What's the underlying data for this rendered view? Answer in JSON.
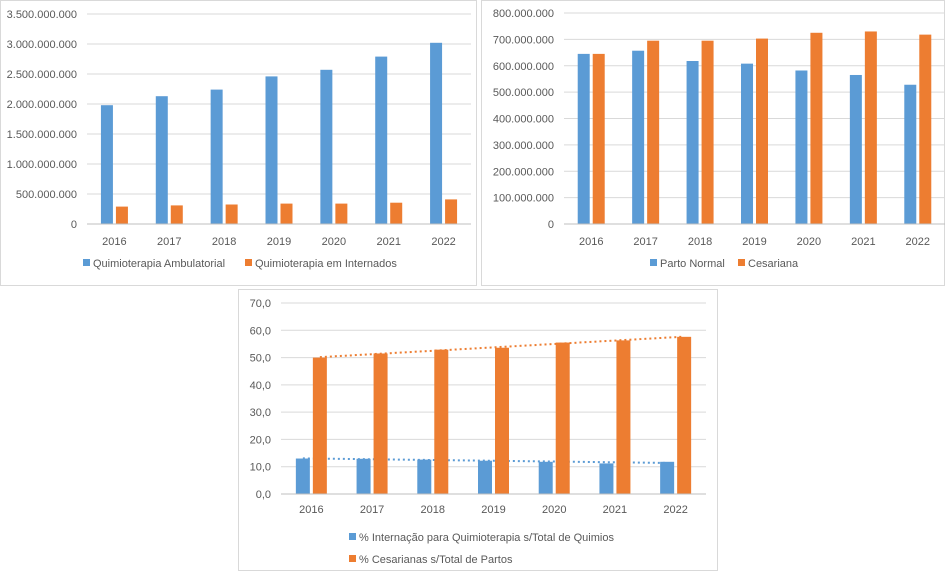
{
  "colors": {
    "blue": "#5b9bd5",
    "orange": "#ed7d31",
    "grid": "#d9d9d9",
    "text": "#595959"
  },
  "chart_data": [
    {
      "type": "bar",
      "categories": [
        "2016",
        "2017",
        "2018",
        "2019",
        "2020",
        "2021",
        "2022"
      ],
      "series": [
        {
          "name": "Quimioterapia Ambulatorial",
          "color": "#5b9bd5",
          "values": [
            1980000000,
            2130000000,
            2240000000,
            2460000000,
            2570000000,
            2790000000,
            3020000000
          ]
        },
        {
          "name": "Quimioterapia em Internados",
          "color": "#ed7d31",
          "values": [
            290000000,
            310000000,
            325000000,
            340000000,
            340000000,
            355000000,
            410000000
          ]
        }
      ],
      "ylim": [
        0,
        3500000000
      ],
      "y_ticks": [
        0,
        500000000,
        1000000000,
        1500000000,
        2000000000,
        2500000000,
        3000000000,
        3500000000
      ],
      "y_tick_labels": [
        "0",
        "500.000.000",
        "1.000.000.000",
        "1.500.000.000",
        "2.000.000.000",
        "2.500.000.000",
        "3.000.000.000",
        "3.500.000.000"
      ],
      "grid": true,
      "legend": "bottom"
    },
    {
      "type": "bar",
      "categories": [
        "2016",
        "2017",
        "2018",
        "2019",
        "2020",
        "2021",
        "2022"
      ],
      "series": [
        {
          "name": "Parto Normal",
          "color": "#5b9bd5",
          "values": [
            645000000,
            657000000,
            618000000,
            608000000,
            582000000,
            565000000,
            528000000
          ]
        },
        {
          "name": "Cesariana",
          "color": "#ed7d31",
          "values": [
            645000000,
            695000000,
            695000000,
            703000000,
            725000000,
            730000000,
            718000000
          ]
        }
      ],
      "ylim": [
        0,
        800000000
      ],
      "y_ticks": [
        0,
        100000000,
        200000000,
        300000000,
        400000000,
        500000000,
        600000000,
        700000000,
        800000000
      ],
      "y_tick_labels": [
        "0",
        "100.000.000",
        "200.000.000",
        "300.000.000",
        "400.000.000",
        "500.000.000",
        "600.000.000",
        "700.000.000",
        "800.000.000"
      ],
      "grid": true,
      "legend": "bottom"
    },
    {
      "type": "bar",
      "categories": [
        "2016",
        "2017",
        "2018",
        "2019",
        "2020",
        "2021",
        "2022"
      ],
      "series": [
        {
          "name": "% Internação para Quimioterapia s/Total de Quimios",
          "color": "#5b9bd5",
          "values": [
            13.0,
            12.9,
            12.6,
            12.2,
            11.8,
            11.2,
            11.8
          ],
          "trendline": "linear"
        },
        {
          "name": "% Cesarianas s/Total de Partos",
          "color": "#ed7d31",
          "values": [
            50.0,
            51.5,
            52.9,
            53.6,
            55.5,
            56.3,
            57.6
          ],
          "trendline": "linear"
        }
      ],
      "ylim": [
        0,
        70
      ],
      "y_ticks": [
        0,
        10,
        20,
        30,
        40,
        50,
        60,
        70
      ],
      "y_tick_labels": [
        "0,0",
        "10,0",
        "20,0",
        "30,0",
        "40,0",
        "50,0",
        "60,0",
        "70,0"
      ],
      "grid": true,
      "legend": "bottom"
    }
  ]
}
